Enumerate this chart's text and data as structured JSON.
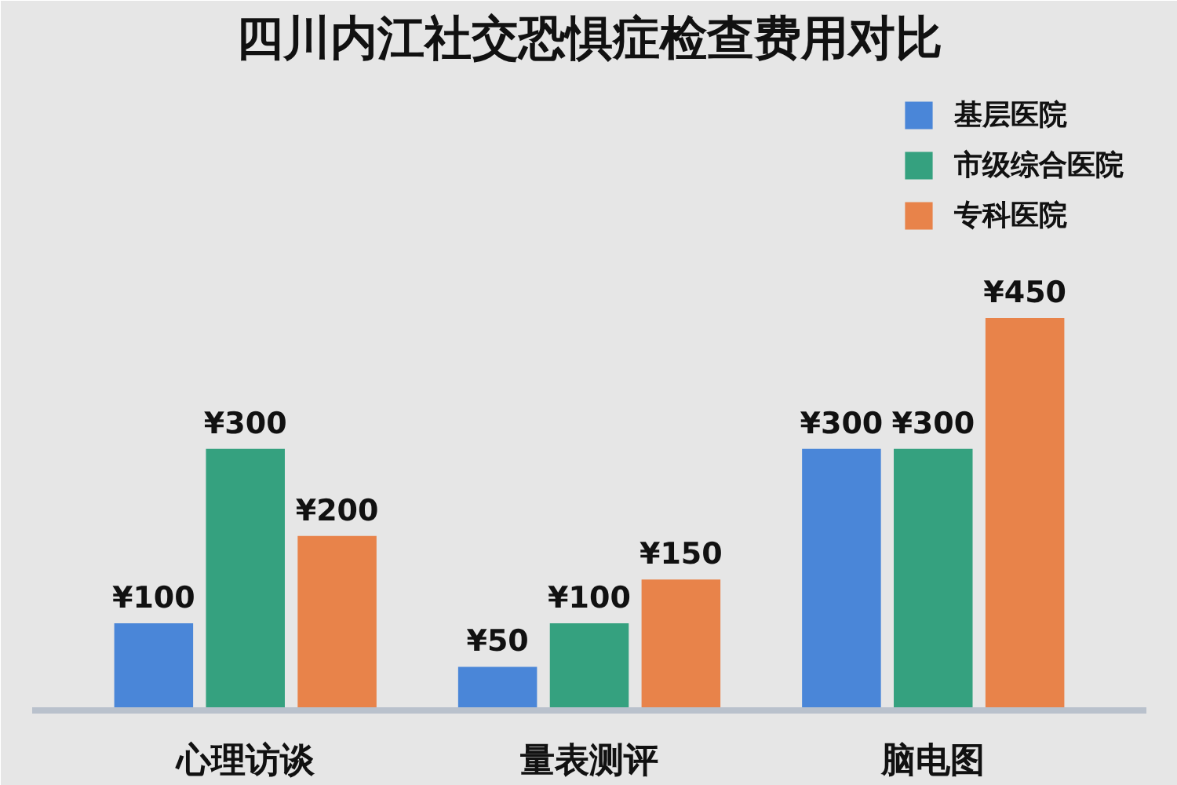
{
  "chart_data": {
    "type": "bar",
    "title": "四川内江社交恐惧症检查费用对比",
    "categories": [
      "心理访谈",
      "量表测评",
      "脑电图"
    ],
    "series": [
      {
        "name": "基层医院",
        "color": "#4a86d8",
        "values": [
          100,
          50,
          300
        ],
        "value_labels": [
          "¥100",
          "¥50",
          "¥300"
        ]
      },
      {
        "name": "市级综合医院",
        "color": "#35a17f",
        "values": [
          300,
          100,
          300
        ],
        "value_labels": [
          "¥300",
          "¥100",
          "¥300"
        ]
      },
      {
        "name": "专科医院",
        "color": "#e8834a",
        "values": [
          200,
          150,
          450
        ],
        "value_labels": [
          "¥200",
          "¥150",
          "¥450"
        ]
      }
    ],
    "legend": "top right"
  }
}
